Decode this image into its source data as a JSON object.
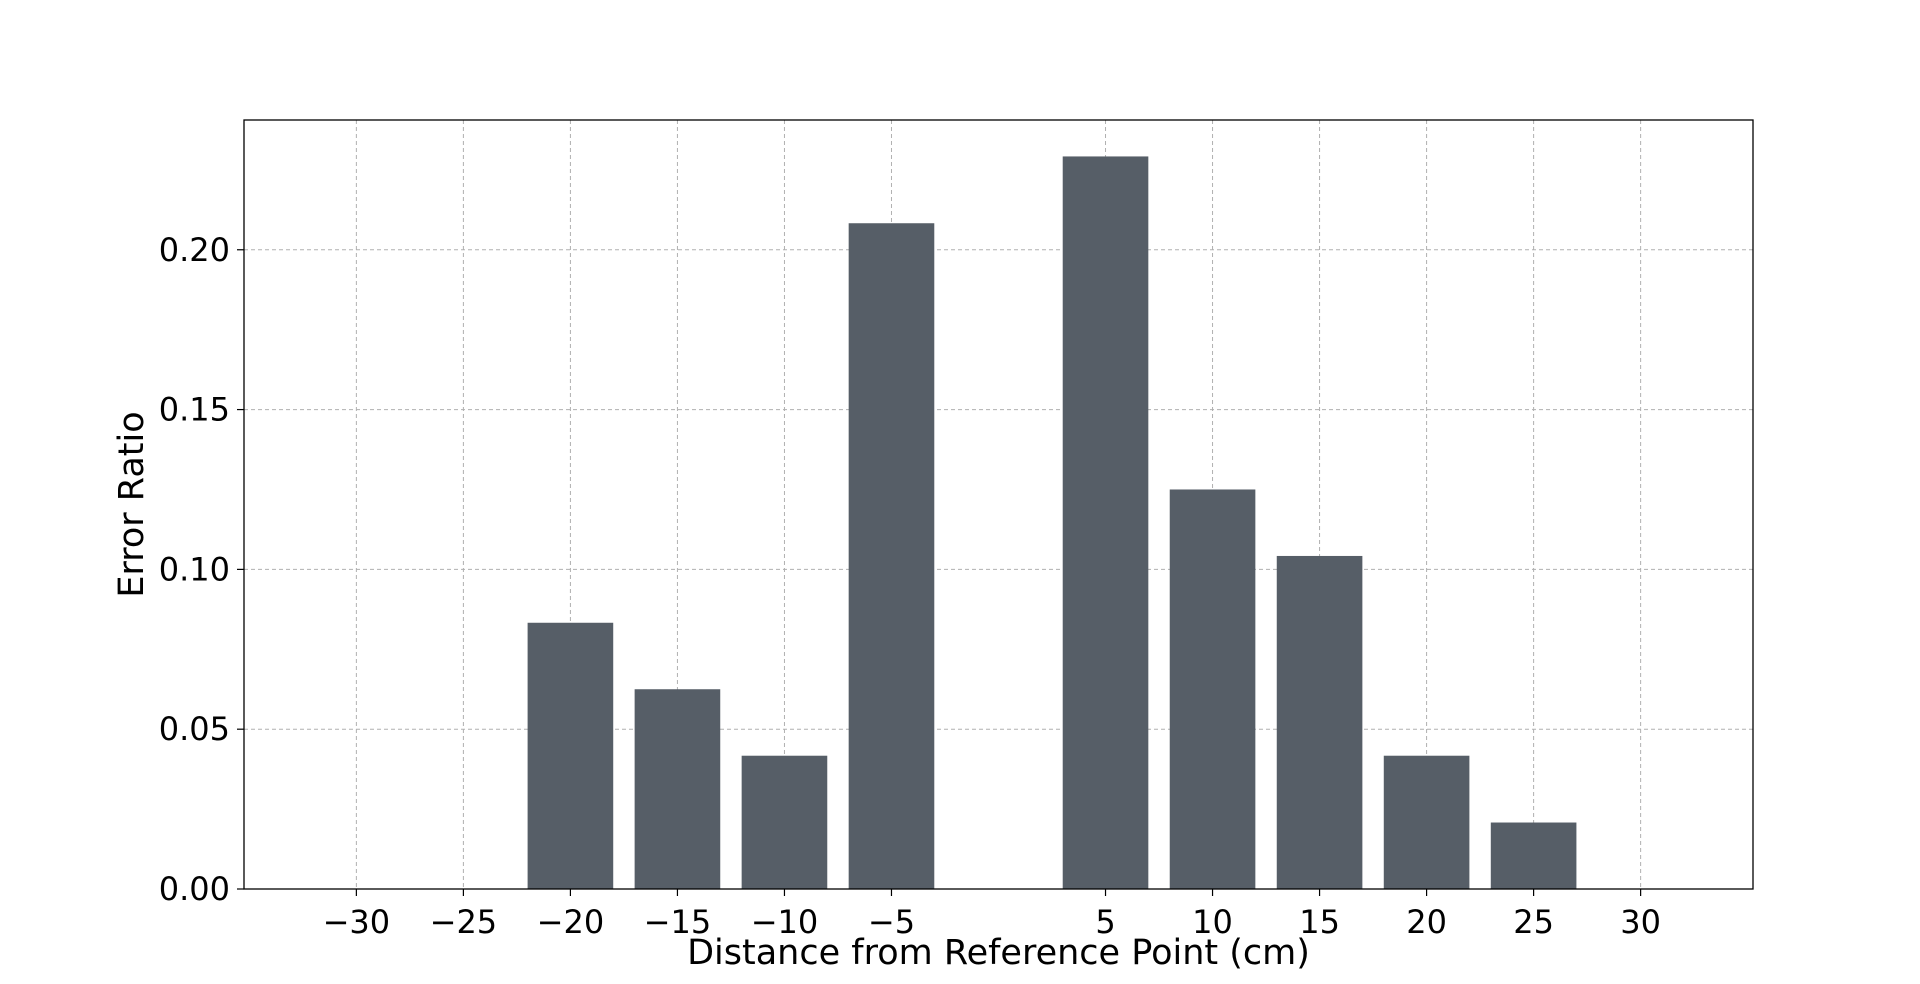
{
  "chart_data": {
    "type": "bar",
    "title": "",
    "xlabel": "Distance from Reference Point (cm)",
    "ylabel": "Error Ratio",
    "x": [
      -20,
      -15,
      -10,
      -5,
      5,
      10,
      15,
      20,
      25
    ],
    "values": [
      0.0833,
      0.0625,
      0.0417,
      0.2083,
      0.2292,
      0.125,
      0.1042,
      0.0417,
      0.0208
    ],
    "xticks": [
      -30,
      -25,
      -20,
      -15,
      -10,
      -5,
      5,
      10,
      15,
      20,
      25,
      30
    ],
    "xtick_labels": [
      "−30",
      "−25",
      "−20",
      "−15",
      "−10",
      "−5",
      "5",
      "10",
      "15",
      "20",
      "25",
      "30"
    ],
    "yticks": [
      0.0,
      0.05,
      0.1,
      0.15,
      0.2
    ],
    "ytick_labels": [
      "0.00",
      "0.05",
      "0.10",
      "0.15",
      "0.20"
    ],
    "xlim": [
      -35.25,
      35.25
    ],
    "ylim": [
      0,
      0.2406
    ],
    "bar_width": 4,
    "grid": true,
    "legend": "none",
    "bar_color": "#565e67"
  }
}
